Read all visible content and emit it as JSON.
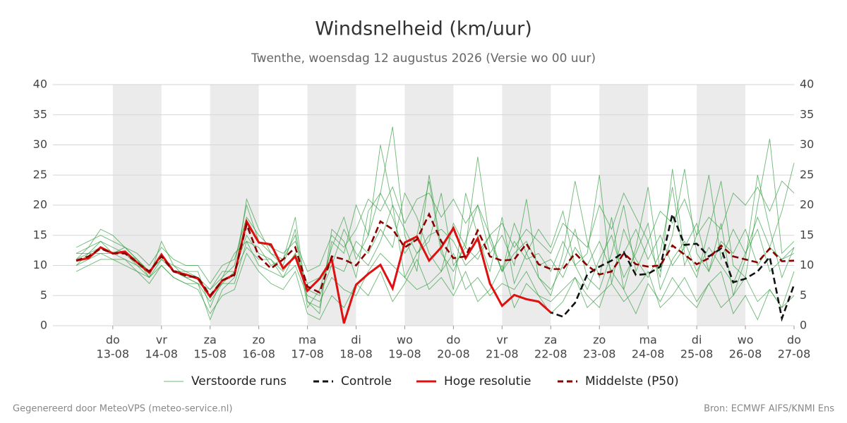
{
  "chart_data": {
    "type": "line",
    "title": "Windsnelheid (km/uur)",
    "subtitle": "Twenthe, woensdag 12 augustus 2026 (Versie wo 00 uur)",
    "footer_left": "Gegenereerd door MeteoVPS (meteo-service.nl)",
    "footer_right": "Bron: ECMWF AIFS/KNMI Ens",
    "x": [
      12.25,
      12.5,
      12.75,
      13,
      13.25,
      13.5,
      13.75,
      14,
      14.25,
      14.5,
      14.75,
      15,
      15.25,
      15.5,
      15.75,
      16,
      16.25,
      16.5,
      16.75,
      17,
      17.25,
      17.5,
      17.75,
      18,
      18.25,
      18.5,
      18.75,
      19,
      19.25,
      19.5,
      19.75,
      20,
      20.25,
      20.5,
      20.75,
      21,
      21.25,
      21.5,
      21.75,
      22,
      22.25,
      22.5,
      22.75,
      23,
      23.25,
      23.5,
      23.75,
      24,
      24.25,
      24.5,
      24.75,
      25,
      25.25,
      25.5,
      25.75,
      26,
      26.25,
      26.5,
      26.75,
      27
    ],
    "xlim": [
      11.77,
      27
    ],
    "xticks": [
      {
        "value": 13,
        "label": [
          "do",
          "13-08"
        ]
      },
      {
        "value": 14,
        "label": [
          "vr",
          "14-08"
        ]
      },
      {
        "value": 15,
        "label": [
          "za",
          "15-08"
        ]
      },
      {
        "value": 16,
        "label": [
          "zo",
          "16-08"
        ]
      },
      {
        "value": 17,
        "label": [
          "ma",
          "17-08"
        ]
      },
      {
        "value": 18,
        "label": [
          "di",
          "18-08"
        ]
      },
      {
        "value": 19,
        "label": [
          "wo",
          "19-08"
        ]
      },
      {
        "value": 20,
        "label": [
          "do",
          "20-08"
        ]
      },
      {
        "value": 21,
        "label": [
          "vr",
          "21-08"
        ]
      },
      {
        "value": 22,
        "label": [
          "za",
          "22-08"
        ]
      },
      {
        "value": 23,
        "label": [
          "zo",
          "23-08"
        ]
      },
      {
        "value": 24,
        "label": [
          "ma",
          "24-08"
        ]
      },
      {
        "value": 25,
        "label": [
          "di",
          "25-08"
        ]
      },
      {
        "value": 26,
        "label": [
          "wo",
          "26-08"
        ]
      },
      {
        "value": 27,
        "label": [
          "do",
          "27-08"
        ]
      }
    ],
    "ylim": [
      0,
      40
    ],
    "yticks": [
      0,
      5,
      10,
      15,
      20,
      25,
      30,
      35,
      40
    ],
    "grid": true,
    "legend": "bottom",
    "series": [
      {
        "name": "Verstoorde runs",
        "color": "#2e9a3a",
        "runs": [
          [
            12,
            13,
            16,
            15,
            13,
            11,
            8,
            14,
            10,
            9,
            9,
            3,
            8,
            10,
            20,
            14,
            12,
            10,
            16,
            4,
            3,
            14,
            12,
            20,
            15,
            22,
            18,
            12,
            15,
            24,
            12,
            9,
            14,
            20,
            12,
            15,
            10,
            21,
            8,
            6,
            10,
            16,
            8,
            6,
            12,
            20,
            9,
            14,
            8,
            26,
            12,
            8,
            16,
            24,
            10,
            8,
            20,
            31,
            12,
            14
          ],
          [
            11,
            12,
            14,
            13,
            12,
            10,
            9,
            12,
            9,
            8,
            7,
            6,
            9,
            9,
            15,
            12,
            11,
            9,
            12,
            7,
            8,
            10,
            16,
            12,
            10,
            14,
            20,
            16,
            12,
            15,
            16,
            14,
            10,
            12,
            15,
            9,
            14,
            11,
            12,
            9,
            14,
            10,
            6,
            11,
            15,
            8,
            12,
            17,
            6,
            11,
            14,
            9,
            13,
            10,
            7,
            12,
            16,
            9,
            11,
            13
          ],
          [
            10,
            11,
            12,
            12,
            11,
            9,
            8,
            10,
            8,
            7,
            7,
            4,
            7,
            7,
            14,
            10,
            9,
            8,
            10,
            5,
            4,
            8,
            6,
            5,
            9,
            12,
            10,
            8,
            6,
            7,
            9,
            12,
            6,
            8,
            5,
            7,
            6,
            9,
            5,
            4,
            6,
            8,
            3,
            5,
            7,
            4,
            6,
            9,
            3,
            5,
            8,
            4,
            7,
            3,
            5,
            8,
            4,
            6,
            3,
            5
          ],
          [
            13,
            14,
            15,
            14,
            13,
            12,
            10,
            13,
            11,
            10,
            10,
            7,
            10,
            11,
            18,
            15,
            13,
            12,
            14,
            9,
            10,
            15,
            13,
            16,
            21,
            19,
            23,
            17,
            21,
            22,
            18,
            21,
            17,
            20,
            15,
            17,
            13,
            16,
            14,
            12,
            17,
            15,
            13,
            20,
            16,
            22,
            18,
            14,
            19,
            17,
            21,
            15,
            18,
            16,
            22,
            20,
            23,
            19,
            24,
            22
          ],
          [
            9,
            10,
            11,
            11,
            10,
            9,
            7,
            10,
            8,
            7,
            6,
            2,
            5,
            6,
            12,
            9,
            7,
            6,
            9,
            2,
            1,
            5,
            3,
            7,
            5,
            9,
            4,
            7,
            11,
            6,
            8,
            5,
            9,
            4,
            6,
            10,
            3,
            7,
            5,
            2,
            4,
            8,
            5,
            3,
            9,
            6,
            2,
            7,
            4,
            8,
            5,
            3,
            7,
            9,
            2,
            5,
            1,
            6,
            3,
            9
          ],
          [
            12,
            12,
            13,
            12,
            12,
            11,
            9,
            12,
            9,
            9,
            8,
            6,
            8,
            12,
            14,
            13,
            10,
            11,
            15,
            3,
            6,
            13,
            18,
            11,
            15,
            30,
            20,
            8,
            12,
            14,
            22,
            10,
            13,
            28,
            14,
            9,
            17,
            12,
            16,
            13,
            19,
            10,
            12,
            25,
            7,
            16,
            11,
            8,
            12,
            23,
            10,
            15,
            25,
            11,
            16,
            12,
            18,
            13,
            19,
            27
          ],
          [
            11,
            13,
            14,
            12,
            13,
            11,
            9,
            11,
            10,
            8,
            8,
            5,
            7,
            9,
            13,
            11,
            11,
            8,
            12,
            6,
            5,
            10,
            9,
            14,
            12,
            16,
            13,
            22,
            18,
            12,
            9,
            17,
            13,
            11,
            15,
            9,
            12,
            14,
            10,
            11,
            8,
            13,
            10,
            14,
            9,
            12,
            16,
            11,
            15,
            10,
            13,
            17,
            9,
            14,
            12,
            16,
            10,
            13,
            11,
            12
          ],
          [
            10,
            12,
            12,
            11,
            11,
            10,
            8,
            11,
            9,
            8,
            7,
            1,
            6,
            8,
            21,
            16,
            12,
            11,
            18,
            4,
            2,
            16,
            14,
            8,
            19,
            22,
            33,
            15,
            9,
            25,
            13,
            6,
            22,
            15,
            9,
            18,
            7,
            12,
            8,
            5,
            12,
            24,
            14,
            8,
            18,
            6,
            13,
            23,
            9,
            15,
            26,
            12,
            9,
            17,
            5,
            11,
            25,
            16,
            8,
            13
          ]
        ]
      },
      {
        "name": "Controle",
        "color": "#111111",
        "dash": true,
        "values": [
          10.8,
          11.3,
          12.9,
          12,
          12.2,
          10.5,
          8.8,
          11.8,
          9.1,
          8.5,
          7.9,
          4.8,
          7.5,
          8.4,
          17.1,
          13.8,
          13.4,
          9.5,
          11.5,
          5.8,
          7.8,
          11,
          0.5,
          6.8,
          8.6,
          10.1,
          6.2,
          13.8,
          14.7,
          10.8,
          13,
          16.1,
          11.2,
          14.4,
          7,
          3.3,
          5.1,
          4.4,
          4,
          2.2,
          1.5,
          3.8,
          8.5,
          9.8,
          10.8,
          12.2,
          8.4,
          8.6,
          9.8,
          18.5,
          13.4,
          13.6,
          11.5,
          12.8,
          7.2,
          7.8,
          9,
          11.4,
          1.2,
          6.8
        ]
      },
      {
        "name": "Hoge resolutie",
        "color": "#e01010",
        "values": [
          10.8,
          11.2,
          13,
          12,
          12.3,
          10.5,
          8.8,
          11.8,
          9,
          8.5,
          7.8,
          4.8,
          7.5,
          8.5,
          17.3,
          13.8,
          13.5,
          9.5,
          11.5,
          5.8,
          7.8,
          11,
          0.4,
          6.8,
          8.6,
          10.1,
          6.2,
          13.8,
          14.8,
          10.8,
          13,
          16.2,
          11.2,
          14.5,
          7,
          3.3,
          5.1,
          4.4,
          4,
          2.2,
          null,
          null,
          null,
          null,
          null,
          null,
          null,
          null,
          null,
          null,
          null,
          null,
          null,
          null,
          null,
          null,
          null,
          null,
          null,
          null
        ]
      },
      {
        "name": "Middelste (P50)",
        "color": "#8b0000",
        "dash": true,
        "values": [
          10.8,
          11.5,
          12.8,
          12,
          12,
          10.5,
          9,
          11.5,
          9,
          8.3,
          8,
          5,
          7.5,
          8.5,
          16.8,
          11.5,
          9.5,
          11,
          13,
          6.5,
          5.5,
          11.5,
          11,
          10,
          12.5,
          17.3,
          16,
          13,
          14.3,
          18.5,
          14,
          11.2,
          11.5,
          15.8,
          11.5,
          10.8,
          11,
          13.6,
          10.2,
          9.4,
          9.4,
          12,
          10,
          8.5,
          9,
          12,
          10.2,
          9.8,
          10,
          13.3,
          11.8,
          10.2,
          11.2,
          13.3,
          11.5,
          11,
          10.5,
          12.8,
          10.7,
          10.8
        ]
      }
    ]
  }
}
